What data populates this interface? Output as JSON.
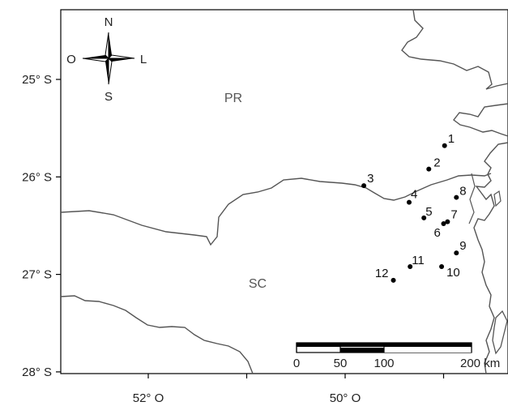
{
  "axes": {
    "y_ticks": [
      {
        "label": "25° S",
        "lat": -25
      },
      {
        "label": "26° S",
        "lat": -26
      },
      {
        "label": "27° S",
        "lat": -27
      },
      {
        "label": "28° S",
        "lat": -28
      }
    ],
    "x_ticks": [
      {
        "label": "52° O",
        "lon": -52
      },
      {
        "label": "",
        "lon": -51
      },
      {
        "label": "50° O",
        "lon": -50
      },
      {
        "label": "",
        "lon": -49
      }
    ]
  },
  "compass": {
    "north": "N",
    "south": "S",
    "west": "O",
    "east": "L"
  },
  "regions": {
    "north": "PR",
    "south": "SC"
  },
  "sites": [
    {
      "id": "1",
      "lat": -25.68,
      "lon": -48.99
    },
    {
      "id": "2",
      "lat": -25.92,
      "lon": -49.15
    },
    {
      "id": "3",
      "lat": -26.09,
      "lon": -49.81
    },
    {
      "id": "4",
      "lat": -26.26,
      "lon": -49.35
    },
    {
      "id": "5",
      "lat": -26.42,
      "lon": -49.2
    },
    {
      "id": "6",
      "lat": -26.48,
      "lon": -49.0
    },
    {
      "id": "7",
      "lat": -26.46,
      "lon": -48.96
    },
    {
      "id": "8",
      "lat": -26.21,
      "lon": -48.87
    },
    {
      "id": "9",
      "lat": -26.78,
      "lon": -48.87
    },
    {
      "id": "10",
      "lat": -26.92,
      "lon": -49.02
    },
    {
      "id": "11",
      "lat": -26.92,
      "lon": -49.34
    },
    {
      "id": "12",
      "lat": -27.06,
      "lon": -49.51
    }
  ],
  "scale_bar": {
    "labels": [
      "0",
      "50",
      "100",
      "200 km"
    ],
    "values": [
      0,
      50,
      100,
      200
    ]
  }
}
